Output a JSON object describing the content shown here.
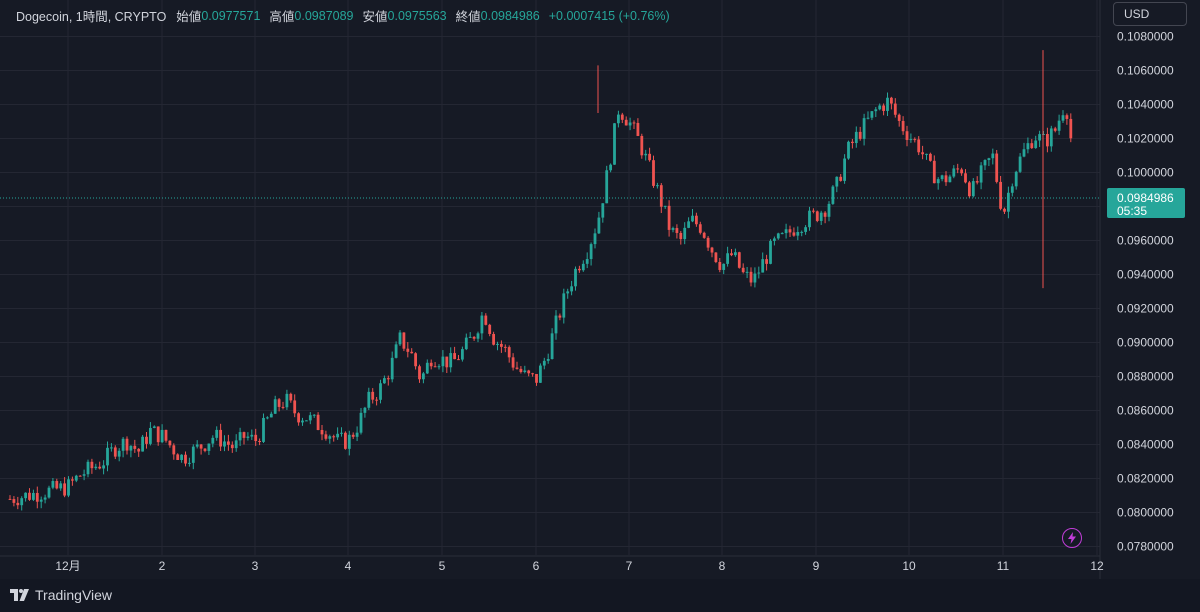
{
  "header": {
    "symbol": "Dogecoin, 1時間, CRYPTO",
    "open_label": "始値",
    "open_value": "0.0977571",
    "high_label": "高値",
    "high_value": "0.0987089",
    "low_label": "安値",
    "low_value": "0.0975563",
    "close_label": "終値",
    "close_value": "0.0984986",
    "change": "+0.0007415 (+0.76%)"
  },
  "currency_button": "USD",
  "last_price": {
    "value": "0.0984986",
    "countdown": "05:35"
  },
  "branding": "TradingView",
  "colors": {
    "background": "#161a25",
    "grid": "#242733",
    "up": "#26a69a",
    "down": "#ef5350",
    "text": "#d1d4dc"
  },
  "chart_data": {
    "type": "candlestick",
    "title": "",
    "xlabel": "",
    "ylabel": "",
    "ylim": [
      0.0775,
      0.1085
    ],
    "yticks": [
      "0.1080000",
      "0.1060000",
      "0.1040000",
      "0.1020000",
      "0.1000000",
      "0.0980000",
      "0.0960000",
      "0.0940000",
      "0.0920000",
      "0.0900000",
      "0.0880000",
      "0.0860000",
      "0.0840000",
      "0.0820000",
      "0.0800000",
      "0.0780000"
    ],
    "xticks": [
      "12月",
      "2",
      "3",
      "4",
      "5",
      "6",
      "7",
      "8",
      "9",
      "10",
      "11",
      "12"
    ],
    "grid": true,
    "last_price": 0.0984986,
    "price_path_hourly": {
      "12月": [
        0.0815,
        0.0822,
        0.0826,
        0.083,
        0.0838,
        0.0842,
        0.0836,
        0.0848
      ],
      "2": [
        0.0845,
        0.0838,
        0.0832,
        0.0836,
        0.084,
        0.0845,
        0.0842,
        0.0838,
        0.0845
      ],
      "3": [
        0.0842,
        0.0852,
        0.0862,
        0.0866,
        0.0858,
        0.0856,
        0.0852,
        0.0848,
        0.0842
      ],
      "4": [
        0.0842,
        0.0852,
        0.0866,
        0.0872,
        0.0884,
        0.0902,
        0.0894,
        0.0878,
        0.0892
      ],
      "5": [
        0.089,
        0.0888,
        0.0895,
        0.0904,
        0.0918,
        0.0902,
        0.0896,
        0.0886,
        0.088
      ],
      "6": [
        0.0878,
        0.0892,
        0.0912,
        0.093,
        0.0945,
        0.0955,
        0.0972,
        0.1002,
        0.1038
      ],
      "7": [
        0.103,
        0.1018,
        0.1002,
        0.0985,
        0.0966,
        0.096,
        0.0972,
        0.0968,
        0.0955
      ],
      "8": [
        0.0945,
        0.0952,
        0.094,
        0.0936,
        0.0948,
        0.0958,
        0.0962,
        0.0968,
        0.0972
      ],
      "9": [
        0.0975,
        0.098,
        0.0992,
        0.1012,
        0.1022,
        0.103,
        0.1038,
        0.1042,
        0.103
      ],
      "10": [
        0.1022,
        0.1015,
        0.1002,
        0.0995,
        0.0998,
        0.1003,
        0.0988,
        0.1,
        0.101
      ],
      "11": [
        0.0975,
        0.1,
        0.1012,
        0.1022,
        0.1018,
        0.1025,
        0.1042,
        0.0998,
        0.0978
      ],
      "12": [
        0.0984986
      ]
    }
  }
}
